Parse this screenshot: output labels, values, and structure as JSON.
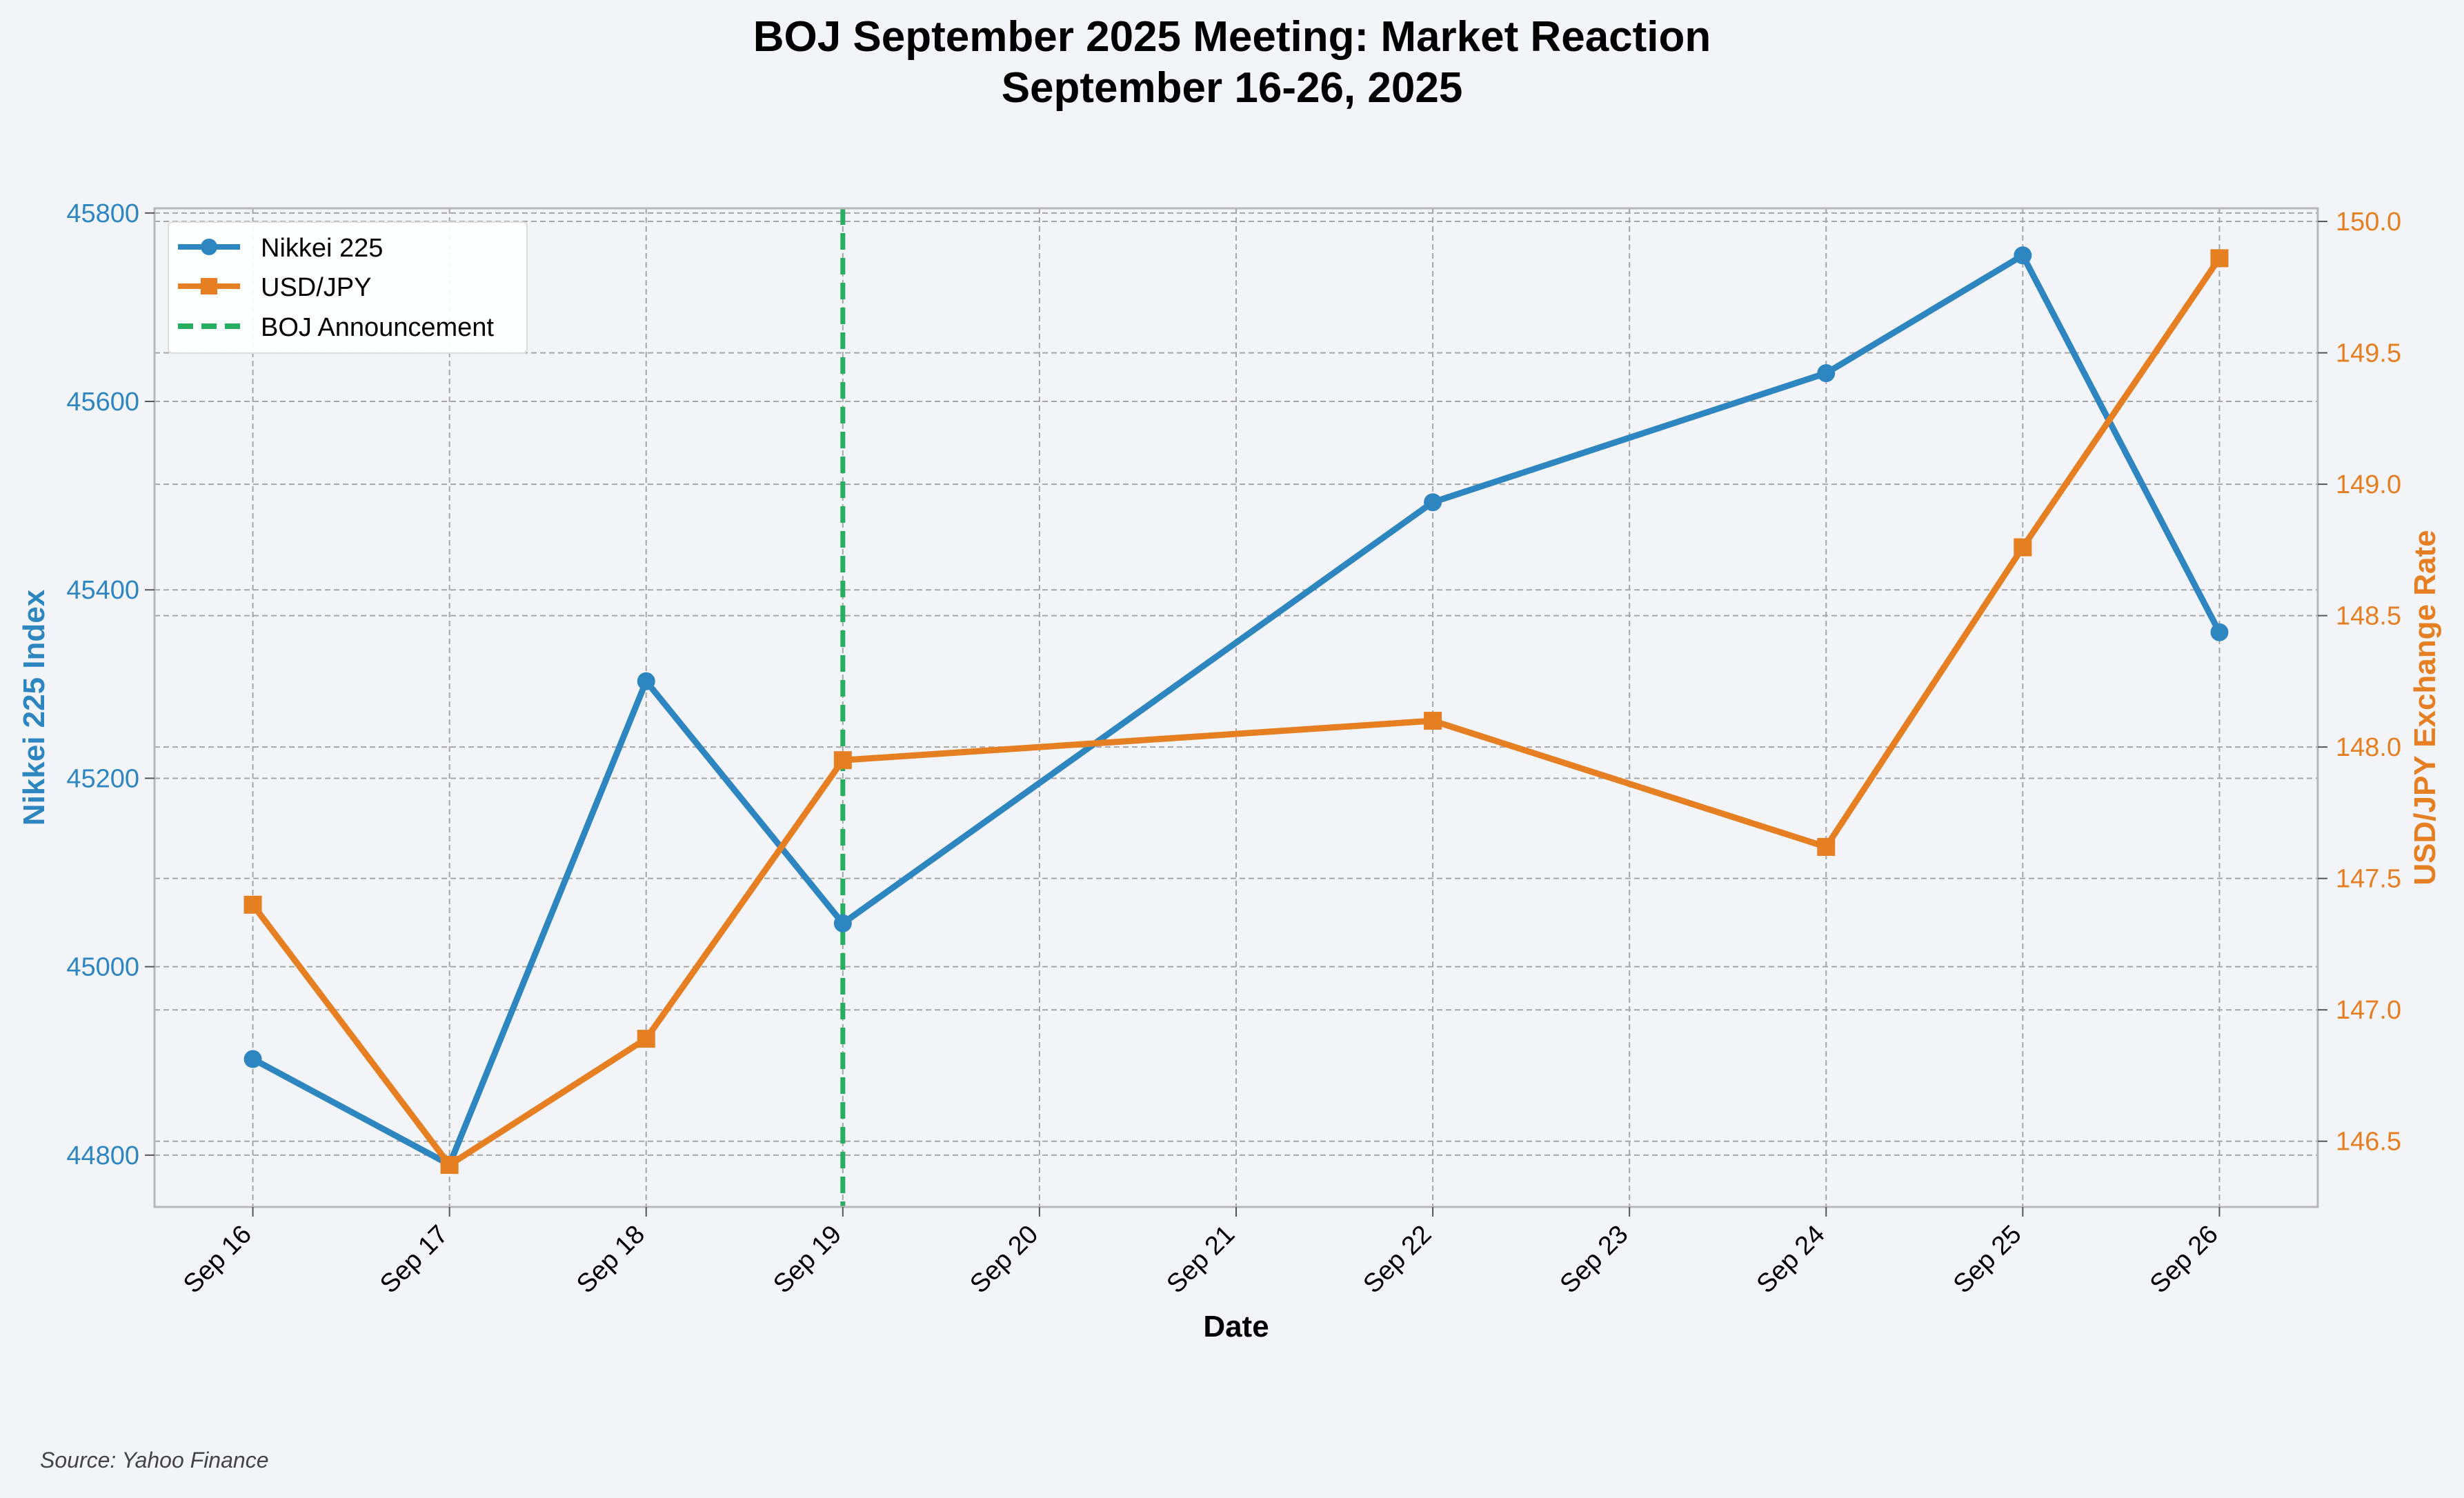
{
  "title_line1": "BOJ September 2025 Meeting: Market Reaction",
  "title_line2": "September 16-26, 2025",
  "source_note": "Source: Yahoo Finance",
  "colors": {
    "background": "#f2f4f7",
    "nikkei": "#2e86c1",
    "usdjpy": "#e67e22",
    "boj": "#27ae60",
    "grid": "#a6a6a6",
    "frame": "#b8b8b8"
  },
  "legend": {
    "nikkei": "Nikkei 225",
    "usdjpy": "USD/JPY",
    "boj": "BOJ Announcement"
  },
  "chart_data": {
    "type": "line",
    "title": "BOJ September 2025 Meeting: Market Reaction\nSeptember 16-26, 2025",
    "xlabel": "Date",
    "ylabel_left": "Nikkei 225 Index",
    "ylabel_right": "USD/JPY Exchange Rate",
    "x_tick_labels": [
      "Sep 16",
      "Sep 17",
      "Sep 18",
      "Sep 19",
      "Sep 20",
      "Sep 21",
      "Sep 22",
      "Sep 23",
      "Sep 24",
      "Sep 25",
      "Sep 26"
    ],
    "x_day_range": [
      15.5,
      26.5
    ],
    "ylim_left": [
      44745,
      45805
    ],
    "ylim_right": [
      146.25,
      150.05
    ],
    "yticks_left": [
      44800,
      45000,
      45200,
      45400,
      45600,
      45800
    ],
    "yticks_right": [
      146.5,
      147.0,
      147.5,
      148.0,
      148.5,
      149.0,
      149.5,
      150.0
    ],
    "yticks_right_labels": [
      "146.5",
      "147.0",
      "147.5",
      "148.0",
      "148.5",
      "149.0",
      "149.5",
      "150.0"
    ],
    "grid": true,
    "legend_position": "top-left",
    "series": [
      {
        "name": "Nikkei 225",
        "axis": "left",
        "marker": "circle",
        "days": [
          16,
          17,
          18,
          19,
          22,
          24,
          25,
          26
        ],
        "dates": [
          "Sep 16",
          "Sep 17",
          "Sep 18",
          "Sep 19",
          "Sep 22",
          "Sep 24",
          "Sep 25",
          "Sep 26"
        ],
        "values": [
          44902,
          44790,
          45303,
          45046,
          45493,
          45630,
          45755,
          45355
        ]
      },
      {
        "name": "USD/JPY",
        "axis": "right",
        "marker": "square",
        "days": [
          16,
          17,
          18,
          19,
          22,
          24,
          25,
          26
        ],
        "dates": [
          "Sep 16",
          "Sep 17",
          "Sep 18",
          "Sep 19",
          "Sep 22",
          "Sep 24",
          "Sep 25",
          "Sep 26"
        ],
        "values": [
          147.4,
          146.41,
          146.89,
          147.95,
          148.1,
          147.62,
          148.76,
          149.86
        ]
      }
    ],
    "annotations": [
      {
        "type": "vline",
        "day": 19,
        "label": "BOJ Announcement",
        "style": "dashed"
      }
    ]
  }
}
